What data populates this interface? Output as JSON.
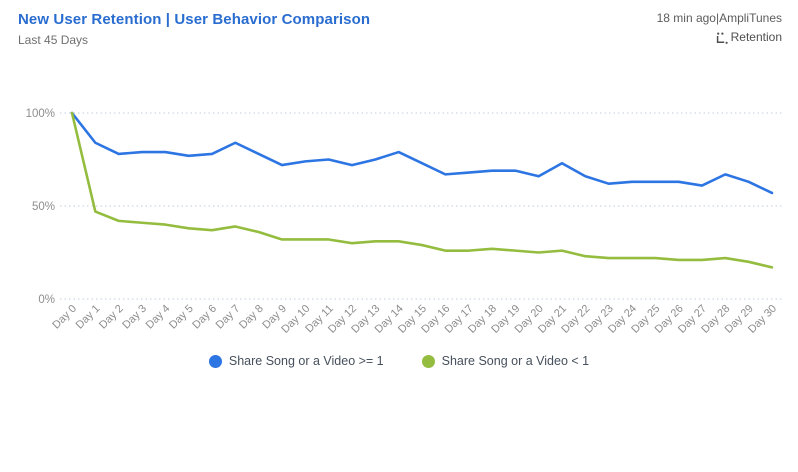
{
  "header": {
    "title": "New User Retention | User Behavior Comparison",
    "subtitle": "Last 45 Days",
    "meta_line": "18 min ago|AmpliTunes",
    "source_label": "Retention"
  },
  "icons": {
    "retention": "mini-chart-axis-icon"
  },
  "colors": {
    "title": "#2a6dd0",
    "series_blue": "#2d75e3",
    "series_green": "#94bd40",
    "grid": "#c2cede",
    "axis_text": "#8d8d8d",
    "legend_text": "#46505c"
  },
  "chart_data": {
    "type": "line",
    "title": "New User Retention | User Behavior Comparison",
    "xlabel": "",
    "ylabel": "",
    "ylim": [
      0,
      100
    ],
    "yticks": [
      0,
      50,
      100
    ],
    "ytick_suffix": "%",
    "grid": "dotted-horizontal",
    "legend_position": "bottom-center",
    "x": [
      "Day 0",
      "Day 1",
      "Day 2",
      "Day 3",
      "Day 4",
      "Day 5",
      "Day 6",
      "Day 7",
      "Day 8",
      "Day 9",
      "Day 10",
      "Day 11",
      "Day 12",
      "Day 13",
      "Day 14",
      "Day 15",
      "Day 16",
      "Day 17",
      "Day 18",
      "Day 19",
      "Day 20",
      "Day 21",
      "Day 22",
      "Day 23",
      "Day 24",
      "Day 25",
      "Day 26",
      "Day 27",
      "Day 28",
      "Day 29",
      "Day 30"
    ],
    "series": [
      {
        "name": "Share Song or a Video >= 1",
        "color_key": "series_blue",
        "values": [
          100,
          84,
          78,
          79,
          79,
          77,
          78,
          84,
          78,
          72,
          74,
          75,
          72,
          75,
          79,
          73,
          67,
          68,
          69,
          69,
          66,
          73,
          66,
          62,
          63,
          63,
          63,
          61,
          67,
          63,
          57
        ]
      },
      {
        "name": "Share Song or a Video < 1",
        "color_key": "series_green",
        "values": [
          100,
          47,
          42,
          41,
          40,
          38,
          37,
          39,
          36,
          32,
          32,
          32,
          30,
          31,
          31,
          29,
          26,
          26,
          27,
          26,
          25,
          26,
          23,
          22,
          22,
          22,
          21,
          21,
          22,
          20,
          17
        ]
      }
    ]
  }
}
